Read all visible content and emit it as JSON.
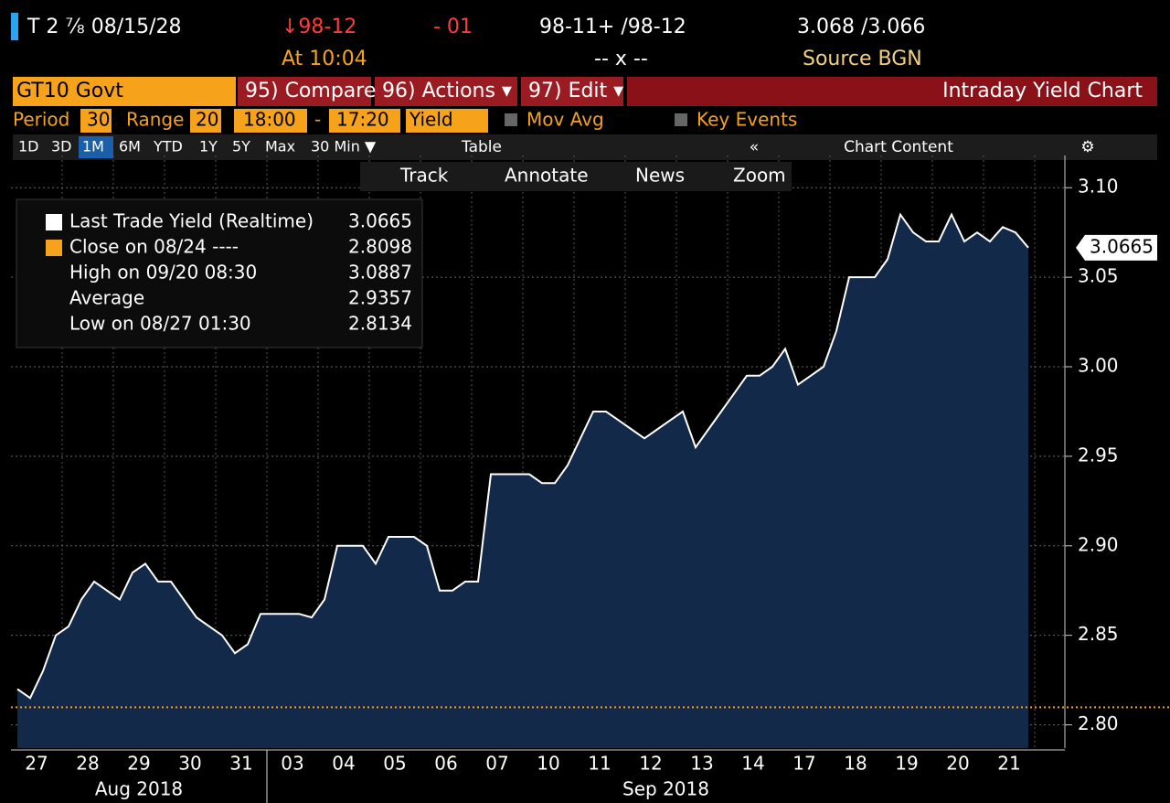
{
  "header": {
    "ticker": "T 2 ⅞ 08/15/28",
    "price": "↓98-12",
    "change": "- 01",
    "bid_ask": "98-11+ /98-12",
    "yields": "3.068 /3.066",
    "time": "At 10:04",
    "size": "-- x --",
    "source": "Source BGN"
  },
  "toolbar": {
    "security": "GT10 Govt",
    "buttons": [
      "95) Compare",
      "96) Actions ▾",
      "97) Edit ▾"
    ],
    "title": "Intraday Yield Chart"
  },
  "settings": {
    "period_label": "Period",
    "period": "30",
    "range_label": "Range",
    "range": "20",
    "start": "18:00",
    "dash": "-",
    "end": "17:20",
    "field": "Yield",
    "mov_avg": "Mov Avg",
    "key_events": "Key Events"
  },
  "tabs": {
    "ranges": [
      "1D",
      "3D",
      "1M",
      "6M",
      "YTD",
      "1Y",
      "5Y",
      "Max",
      "30 Min ▼"
    ],
    "table": "Table",
    "collapse": "«",
    "content": "Chart Content",
    "gear": "⚙"
  },
  "tools": [
    "Track",
    "Annotate",
    "News",
    "Zoom"
  ],
  "chart_data": {
    "type": "area",
    "legend_entries": [
      {
        "label": "Last Trade Yield (Realtime)",
        "value": 3.0665
      },
      {
        "label": "Close on 08/24 ----",
        "value": 2.8098
      },
      {
        "label": "High on 09/20 08:30",
        "value": 3.0887
      },
      {
        "label": "Average",
        "value": 2.9357
      },
      {
        "label": "Low on 08/27 01:30",
        "value": 2.8134
      }
    ],
    "series": [
      {
        "name": "Last Trade Yield (Realtime)",
        "color": "#ffffff",
        "values": [
          2.82,
          2.815,
          2.83,
          2.85,
          2.855,
          2.87,
          2.88,
          2.875,
          2.87,
          2.885,
          2.89,
          2.88,
          2.88,
          2.87,
          2.86,
          2.855,
          2.85,
          2.84,
          2.845,
          2.862,
          2.862,
          2.862,
          2.862,
          2.86,
          2.87,
          2.9,
          2.9,
          2.9,
          2.89,
          2.905,
          2.905,
          2.905,
          2.9,
          2.875,
          2.875,
          2.88,
          2.88,
          2.94,
          2.94,
          2.94,
          2.94,
          2.935,
          2.935,
          2.945,
          2.96,
          2.975,
          2.975,
          2.97,
          2.965,
          2.96,
          2.965,
          2.97,
          2.975,
          2.955,
          2.965,
          2.975,
          2.985,
          2.995,
          2.995,
          3.0,
          3.01,
          2.99,
          2.995,
          3.0,
          3.02,
          3.05,
          3.05,
          3.05,
          3.06,
          3.085,
          3.075,
          3.07,
          3.07,
          3.085,
          3.07,
          3.075,
          3.07,
          3.078,
          3.075,
          3.0665
        ]
      }
    ],
    "xlim": [
      0,
      80
    ],
    "xticks": [
      {
        "value": 2,
        "label": "27"
      },
      {
        "value": 6,
        "label": "28"
      },
      {
        "value": 10,
        "label": "29"
      },
      {
        "value": 14,
        "label": "30"
      },
      {
        "value": 18,
        "label": "31"
      },
      {
        "value": 22,
        "label": "03"
      },
      {
        "value": 26,
        "label": "04"
      },
      {
        "value": 30,
        "label": "05"
      },
      {
        "value": 34,
        "label": "06"
      },
      {
        "value": 38,
        "label": "07"
      },
      {
        "value": 42,
        "label": "10"
      },
      {
        "value": 46,
        "label": "11"
      },
      {
        "value": 50,
        "label": "12"
      },
      {
        "value": 54,
        "label": "13"
      },
      {
        "value": 58,
        "label": "14"
      },
      {
        "value": 62,
        "label": "17"
      },
      {
        "value": 66,
        "label": "18"
      },
      {
        "value": 70,
        "label": "19"
      },
      {
        "value": 74,
        "label": "20"
      },
      {
        "value": 78,
        "label": "21"
      }
    ],
    "months": [
      "Aug 2018",
      "Sep 2018"
    ],
    "ylim": [
      2.787,
      3.118
    ],
    "yticks": [
      {
        "value": 2.8,
        "label": "2.80"
      },
      {
        "value": 2.85,
        "label": "2.85"
      },
      {
        "value": 2.9,
        "label": "2.90"
      },
      {
        "value": 2.95,
        "label": "2.95"
      },
      {
        "value": 3.0,
        "label": "3.00"
      },
      {
        "value": 3.05,
        "label": "3.05"
      },
      {
        "value": 3.1,
        "label": "3.10"
      }
    ],
    "grid": true,
    "reference_color": "#f39c12",
    "area_color": "#12294a"
  }
}
